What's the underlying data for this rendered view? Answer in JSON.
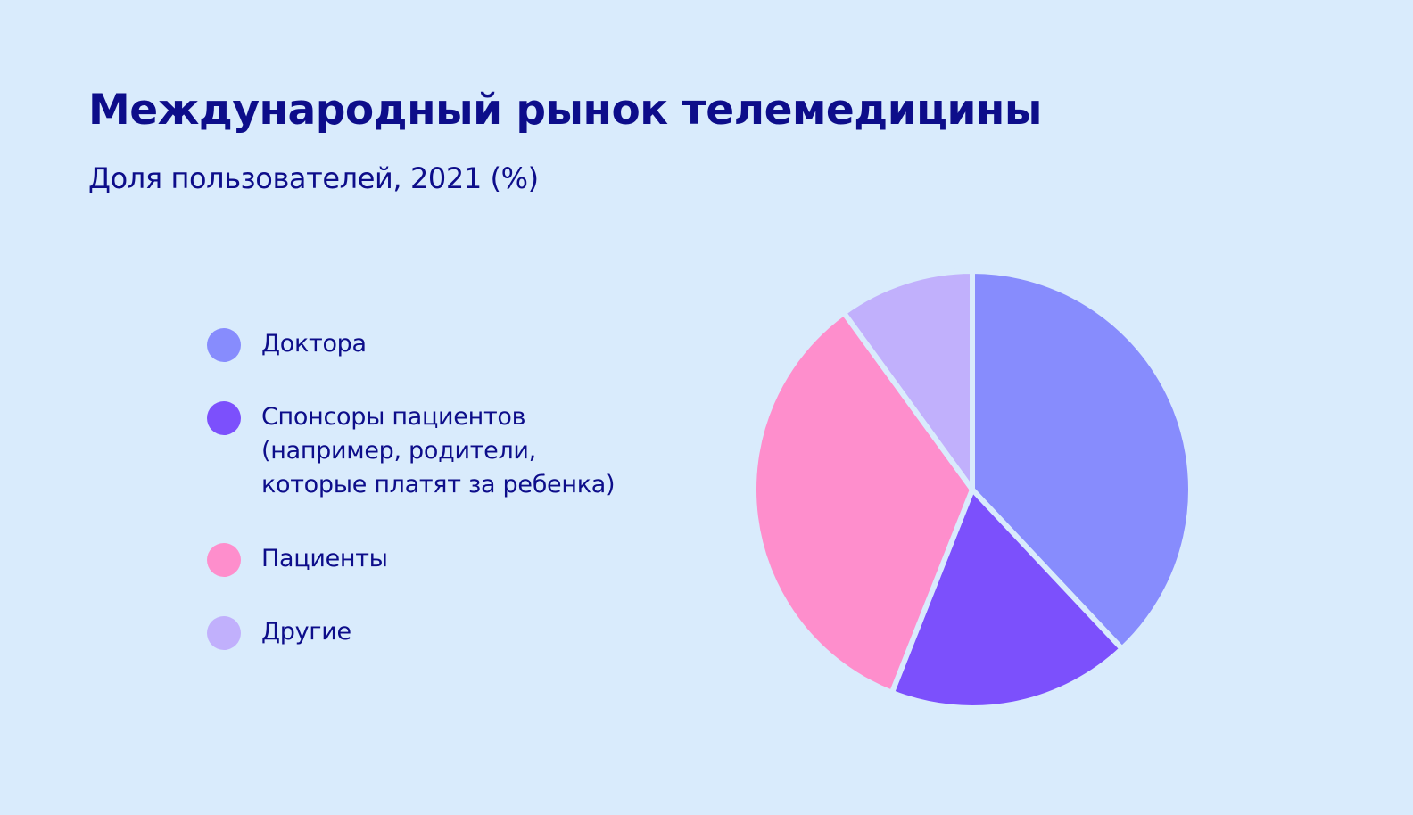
{
  "title": "Международный рынок телемедицины",
  "subtitle": "Доля пользователей, 2021 (%)",
  "legend": {
    "items": [
      {
        "label": "Доктора",
        "color": "#878cfd"
      },
      {
        "label": "Спонсоры пациентов\n(например, родители,\nкоторые платят за ребенка)",
        "color": "#7c50fc"
      },
      {
        "label": "Пациенты",
        "color": "#fe8ecc"
      },
      {
        "label": "Другие",
        "color": "#c1b0fc"
      }
    ]
  },
  "chart_data": {
    "type": "pie",
    "title": "Международный рынок телемедицины",
    "subtitle": "Доля пользователей, 2021 (%)",
    "legend_position": "left",
    "slices": [
      {
        "label": "Доктора",
        "value": 38,
        "color": "#878cfd"
      },
      {
        "label": "Спонсоры пациентов (например, родители, которые платят за ребенка)",
        "value": 18,
        "color": "#7c50fc"
      },
      {
        "label": "Пациенты",
        "value": 34,
        "color": "#fe8ecc"
      },
      {
        "label": "Другие",
        "value": 10,
        "color": "#c1b0fc"
      }
    ]
  }
}
